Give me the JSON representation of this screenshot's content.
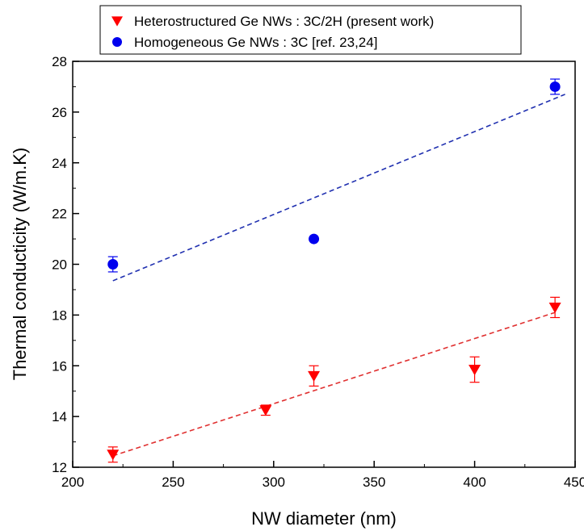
{
  "chart_data": {
    "type": "scatter",
    "xlabel": "NW diameter (nm)",
    "ylabel": "Thermal conducticity (W/m.K)",
    "xlim": [
      200,
      450
    ],
    "ylim": [
      12,
      28
    ],
    "xticks": [
      200,
      250,
      300,
      350,
      400,
      450
    ],
    "yticks": [
      12,
      14,
      16,
      18,
      20,
      22,
      24,
      26,
      28
    ],
    "grid": false,
    "legend_position": "top",
    "series": [
      {
        "name": "Heterostructured Ge NWs : 3C/2H (present work)",
        "marker": "triangle-down",
        "color": "#ff0000",
        "x": [
          220,
          296,
          320,
          400,
          440
        ],
        "y": [
          12.5,
          14.25,
          15.6,
          15.85,
          18.3
        ],
        "err": [
          0.3,
          0.2,
          0.4,
          0.5,
          0.4
        ],
        "trendline": {
          "x": [
            220,
            440
          ],
          "y": [
            12.45,
            18.1
          ],
          "color": "#e03030"
        }
      },
      {
        "name": "Homogeneous Ge NWs : 3C [ref. 23,24]",
        "marker": "circle",
        "color": "#0000ee",
        "x": [
          220,
          320,
          440
        ],
        "y": [
          20.0,
          21.0,
          27.0
        ],
        "err": [
          0.3,
          0.0,
          0.3
        ],
        "trendline": {
          "x": [
            220,
            445
          ],
          "y": [
            19.35,
            26.7
          ],
          "color": "#2030b0"
        }
      }
    ]
  }
}
